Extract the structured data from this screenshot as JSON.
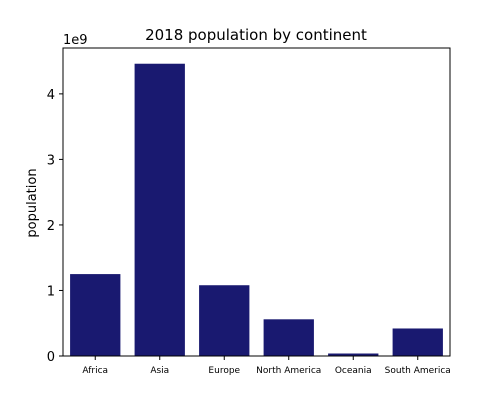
{
  "chart_data": {
    "type": "bar",
    "title": "2018 population by continent",
    "xlabel": "",
    "ylabel": "population",
    "y_offset_label": "1e9",
    "categories": [
      "Africa",
      "Asia",
      "Europe",
      "North America",
      "Oceania",
      "South America"
    ],
    "values": [
      1250000000,
      4460000000,
      1080000000,
      560000000,
      38000000,
      420000000
    ],
    "ylim": [
      0,
      4700000000
    ],
    "yticks": [
      0,
      1000000000,
      2000000000,
      3000000000,
      4000000000
    ],
    "ytick_labels": [
      "0",
      "1",
      "2",
      "3",
      "4"
    ],
    "bar_color": "#191970",
    "grid": false,
    "legend": "none"
  }
}
